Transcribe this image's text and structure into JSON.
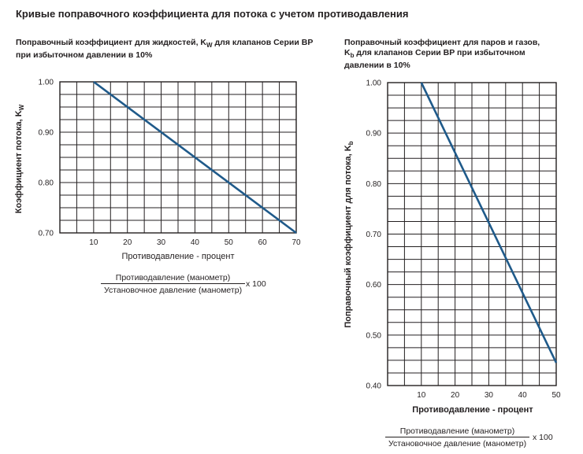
{
  "page": {
    "title": "Кривые поправочного коэффициента для потока с учетом противодавления"
  },
  "left_chart": {
    "title_part1": "Поправочный коэффициент для жидкостей, K",
    "title_sub": "W",
    "title_part2": " для клапанов Серии BP при избыточном давлении в 10%",
    "ylabel_prefix": "Коэффициент потока, K",
    "ylabel_sub": "W",
    "xlabel": "Противодавление - процент",
    "fraction": {
      "numerator": "Противодавление (манометр)",
      "denominator": "Установочное давление (манометр)",
      "multiplier": "x 100"
    }
  },
  "right_chart": {
    "title_line1": "Поправочный коэффициент для паров и газов,",
    "title_line2_prefix": "K",
    "title_line2_sub": "b",
    "title_line2_rest": " для клапанов Серии BP при избыточном",
    "title_line3": "давлении в 10%",
    "ylabel_prefix": "Поправочный коэффициент для потока, K",
    "ylabel_sub": "b",
    "xlabel": "Противодавление - процент",
    "fraction": {
      "numerator": "Противодавление (манометр)",
      "denominator": "Установочное давление (манометр)",
      "multiplier": "x 100"
    }
  },
  "colors": {
    "curve": "#1f5a8a",
    "grid": "#231f20"
  },
  "chart_data": [
    {
      "type": "line",
      "title": "Поправочный коэффициент для жидкостей, KW для клапанов Серии BP при избыточном давлении в 10%",
      "xlabel": "Противодавление - процент",
      "ylabel": "Коэффициент потока, KW",
      "xlim": [
        0,
        70
      ],
      "ylim": [
        0.7,
        1.0
      ],
      "x_ticks": [
        10,
        20,
        30,
        40,
        50,
        60,
        70
      ],
      "y_ticks": [
        "0.70",
        "0.80",
        "0.90",
        "1.00"
      ],
      "x_minor_step": 5,
      "y_minor_step": 0.025,
      "grid": true,
      "series": [
        {
          "x": [
            10,
            70
          ],
          "y": [
            1.0,
            0.7
          ]
        }
      ]
    },
    {
      "type": "line",
      "title": "Поправочный коэффициент для паров и газов, Kb для клапанов Серии BP при избыточном давлении в 10%",
      "xlabel": "Противодавление - процент",
      "ylabel": "Поправочный коэффициент для потока, Kb",
      "xlim": [
        0,
        50
      ],
      "ylim": [
        0.4,
        1.0
      ],
      "x_ticks": [
        10,
        20,
        30,
        40,
        50
      ],
      "y_ticks": [
        "0.40",
        "0.50",
        "0.60",
        "0.70",
        "0.80",
        "0.90",
        "1.00"
      ],
      "x_minor_step": 5,
      "y_minor_step": 0.025,
      "grid": true,
      "series": [
        {
          "x": [
            10,
            50
          ],
          "y": [
            1.0,
            0.445
          ]
        }
      ]
    }
  ]
}
